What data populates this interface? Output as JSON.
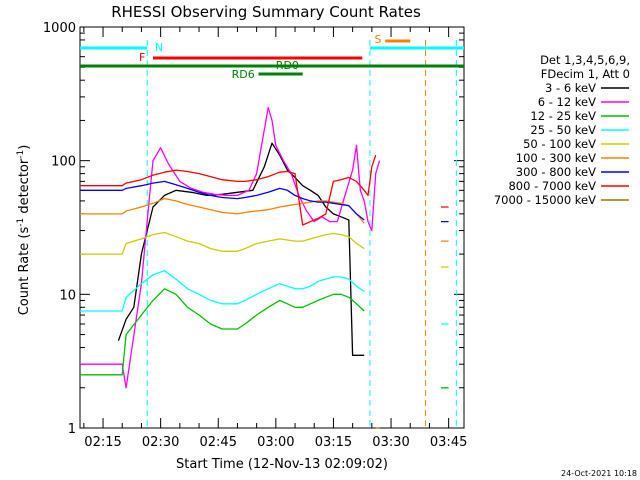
{
  "chart_data": {
    "type": "line",
    "title": "RHESSI Observing Summary Count Rates",
    "xlabel": "Start Time (12-Nov-13 02:09:02)",
    "ylabel_main": "Count Rate (s",
    "ylabel_sup1": "-1",
    "ylabel_mid": " detector",
    "ylabel_sup2": "-1",
    "ylabel_end": ")",
    "yscale": "log",
    "ylim": [
      1,
      1000
    ],
    "xlim_min": [
      129,
      229
    ],
    "x_tick_labels": [
      {
        "t": 135,
        "label": "02:15"
      },
      {
        "t": 150,
        "label": "02:30"
      },
      {
        "t": 165,
        "label": "02:45"
      },
      {
        "t": 180,
        "label": "03:00"
      },
      {
        "t": 195,
        "label": "03:15"
      },
      {
        "t": 210,
        "label": "03:30"
      },
      {
        "t": 225,
        "label": "03:45"
      }
    ],
    "y_tick_labels": [
      {
        "v": 1,
        "label": "1"
      },
      {
        "v": 10,
        "label": "10"
      },
      {
        "v": 100,
        "label": "100"
      },
      {
        "v": 1000,
        "label": "1000"
      }
    ],
    "legend_header": [
      "Det 1,3,4,5,6,9,",
      "FDecim 1, Att 0"
    ],
    "series": [
      {
        "name": "3 - 6 keV",
        "color": "#000000",
        "points": [
          [
            129,
            null
          ],
          [
            138,
            null
          ],
          [
            139,
            4.5
          ],
          [
            141,
            6.5
          ],
          [
            143,
            8
          ],
          [
            145,
            20
          ],
          [
            148,
            45
          ],
          [
            151,
            55
          ],
          [
            154,
            60
          ],
          [
            158,
            58
          ],
          [
            162,
            55
          ],
          [
            166,
            56
          ],
          [
            170,
            58
          ],
          [
            174,
            60
          ],
          [
            177,
            90
          ],
          [
            179,
            135
          ],
          [
            181,
            110
          ],
          [
            183,
            85
          ],
          [
            185,
            75
          ],
          [
            187,
            65
          ],
          [
            189,
            60
          ],
          [
            191,
            55
          ],
          [
            193,
            45
          ],
          [
            195,
            40
          ],
          [
            197,
            38
          ],
          [
            199,
            36
          ],
          [
            200,
            3.5
          ],
          [
            203,
            3.5
          ],
          [
            204,
            null
          ]
        ]
      },
      {
        "name": "6 - 12 keV",
        "color": "#ff00ff",
        "points": [
          [
            129,
            3
          ],
          [
            140,
            3
          ],
          [
            141,
            2
          ],
          [
            145,
            12
          ],
          [
            147,
            50
          ],
          [
            148,
            100
          ],
          [
            150,
            125
          ],
          [
            152,
            95
          ],
          [
            155,
            70
          ],
          [
            158,
            62
          ],
          [
            161,
            58
          ],
          [
            164,
            56
          ],
          [
            167,
            55
          ],
          [
            170,
            55
          ],
          [
            173,
            60
          ],
          [
            175,
            80
          ],
          [
            177,
            170
          ],
          [
            178,
            250
          ],
          [
            179,
            200
          ],
          [
            180,
            130
          ],
          [
            182,
            100
          ],
          [
            184,
            80
          ],
          [
            186,
            55
          ],
          [
            188,
            42
          ],
          [
            190,
            35
          ],
          [
            192,
            38
          ],
          [
            194,
            35
          ],
          [
            196,
            35
          ],
          [
            198,
            55
          ],
          [
            200,
            85
          ],
          [
            201,
            130
          ],
          [
            202,
            60
          ],
          [
            203,
            50
          ],
          [
            204,
            35
          ],
          [
            205,
            30
          ],
          [
            206,
            80
          ],
          [
            207,
            100
          ],
          [
            208,
            null
          ]
        ]
      },
      {
        "name": "12 - 25 keV",
        "color": "#00c000",
        "points": [
          [
            129,
            2.5
          ],
          [
            140,
            2.5
          ],
          [
            141,
            5
          ],
          [
            145,
            7
          ],
          [
            148,
            9
          ],
          [
            151,
            11
          ],
          [
            154,
            10
          ],
          [
            157,
            8
          ],
          [
            160,
            7
          ],
          [
            163,
            6
          ],
          [
            166,
            5.5
          ],
          [
            170,
            5.5
          ],
          [
            172,
            6
          ],
          [
            175,
            7
          ],
          [
            178,
            8
          ],
          [
            181,
            9
          ],
          [
            183,
            8.5
          ],
          [
            185,
            8
          ],
          [
            187,
            8
          ],
          [
            189,
            8.5
          ],
          [
            191,
            9
          ],
          [
            193,
            9.5
          ],
          [
            195,
            10
          ],
          [
            197,
            10
          ],
          [
            199,
            9.5
          ],
          [
            201,
            8.5
          ],
          [
            203,
            7.5
          ],
          [
            204,
            null
          ],
          [
            222,
            null
          ],
          [
            223,
            2
          ],
          [
            225,
            2
          ],
          [
            226,
            null
          ]
        ]
      },
      {
        "name": "25 - 50 keV",
        "color": "#00ffff",
        "points": [
          [
            129,
            7.5
          ],
          [
            140,
            7.5
          ],
          [
            141,
            9.5
          ],
          [
            145,
            12
          ],
          [
            148,
            14
          ],
          [
            151,
            15
          ],
          [
            154,
            13
          ],
          [
            157,
            11
          ],
          [
            160,
            10
          ],
          [
            163,
            9
          ],
          [
            166,
            8.5
          ],
          [
            170,
            8.5
          ],
          [
            172,
            9
          ],
          [
            175,
            10
          ],
          [
            178,
            11
          ],
          [
            181,
            12
          ],
          [
            183,
            11.5
          ],
          [
            185,
            11
          ],
          [
            187,
            11
          ],
          [
            189,
            11.5
          ],
          [
            191,
            12.5
          ],
          [
            193,
            13
          ],
          [
            195,
            13.5
          ],
          [
            197,
            13.5
          ],
          [
            199,
            13
          ],
          [
            201,
            11.5
          ],
          [
            203,
            10.5
          ],
          [
            204,
            null
          ],
          [
            222,
            null
          ],
          [
            223,
            6
          ],
          [
            225,
            6
          ],
          [
            226,
            null
          ]
        ]
      },
      {
        "name": "50 - 100 keV",
        "color": "#cccc00",
        "points": [
          [
            129,
            20
          ],
          [
            140,
            20
          ],
          [
            141,
            24
          ],
          [
            145,
            26
          ],
          [
            148,
            28
          ],
          [
            151,
            29
          ],
          [
            154,
            27
          ],
          [
            157,
            25
          ],
          [
            160,
            24
          ],
          [
            163,
            22
          ],
          [
            166,
            21
          ],
          [
            170,
            21
          ],
          [
            172,
            22
          ],
          [
            175,
            24
          ],
          [
            178,
            25
          ],
          [
            181,
            26
          ],
          [
            183,
            25.5
          ],
          [
            185,
            25
          ],
          [
            187,
            25
          ],
          [
            189,
            26
          ],
          [
            191,
            27
          ],
          [
            193,
            28
          ],
          [
            195,
            28.5
          ],
          [
            197,
            28
          ],
          [
            199,
            27
          ],
          [
            201,
            24
          ],
          [
            203,
            22
          ],
          [
            204,
            null
          ],
          [
            222,
            null
          ],
          [
            223,
            16
          ],
          [
            225,
            16
          ],
          [
            226,
            null
          ]
        ]
      },
      {
        "name": "100 - 300 keV",
        "color": "#ff8000",
        "points": [
          [
            129,
            40
          ],
          [
            140,
            40
          ],
          [
            141,
            42
          ],
          [
            145,
            45
          ],
          [
            148,
            48
          ],
          [
            151,
            52
          ],
          [
            154,
            50
          ],
          [
            157,
            47
          ],
          [
            160,
            45
          ],
          [
            163,
            43
          ],
          [
            166,
            41
          ],
          [
            170,
            40
          ],
          [
            172,
            41
          ],
          [
            175,
            42
          ],
          [
            178,
            43
          ],
          [
            181,
            45
          ],
          [
            183,
            46
          ],
          [
            185,
            47
          ],
          [
            187,
            48
          ],
          [
            189,
            49
          ],
          [
            191,
            50
          ],
          [
            193,
            50
          ],
          [
            195,
            49
          ],
          [
            197,
            48
          ],
          [
            199,
            46
          ],
          [
            201,
            40
          ],
          [
            203,
            34
          ],
          [
            204,
            null
          ],
          [
            222,
            null
          ],
          [
            223,
            25
          ],
          [
            225,
            25
          ],
          [
            226,
            null
          ]
        ]
      },
      {
        "name": "300 - 800 keV",
        "color": "#0000ff",
        "points": [
          [
            129,
            60
          ],
          [
            140,
            60
          ],
          [
            141,
            62
          ],
          [
            145,
            65
          ],
          [
            148,
            68
          ],
          [
            151,
            70
          ],
          [
            154,
            66
          ],
          [
            157,
            62
          ],
          [
            160,
            58
          ],
          [
            163,
            55
          ],
          [
            166,
            53
          ],
          [
            170,
            52
          ],
          [
            172,
            53
          ],
          [
            175,
            55
          ],
          [
            178,
            58
          ],
          [
            181,
            62
          ],
          [
            183,
            60
          ],
          [
            185,
            55
          ],
          [
            187,
            52
          ],
          [
            189,
            50
          ],
          [
            191,
            49
          ],
          [
            193,
            49
          ],
          [
            195,
            48
          ],
          [
            197,
            47
          ],
          [
            199,
            46
          ],
          [
            201,
            40
          ],
          [
            203,
            36
          ],
          [
            204,
            null
          ],
          [
            222,
            null
          ],
          [
            223,
            35
          ],
          [
            225,
            35
          ],
          [
            226,
            null
          ]
        ]
      },
      {
        "name": "800 - 7000 keV",
        "color": "#ff0000",
        "points": [
          [
            129,
            65
          ],
          [
            140,
            65
          ],
          [
            141,
            68
          ],
          [
            145,
            72
          ],
          [
            148,
            78
          ],
          [
            151,
            82
          ],
          [
            154,
            85
          ],
          [
            157,
            83
          ],
          [
            160,
            80
          ],
          [
            163,
            76
          ],
          [
            166,
            72
          ],
          [
            170,
            70
          ],
          [
            172,
            70
          ],
          [
            175,
            72
          ],
          [
            178,
            76
          ],
          [
            181,
            82
          ],
          [
            183,
            83
          ],
          [
            185,
            80
          ],
          [
            187,
            33
          ],
          [
            189,
            35
          ],
          [
            191,
            37
          ],
          [
            193,
            40
          ],
          [
            195,
            70
          ],
          [
            197,
            72
          ],
          [
            199,
            75
          ],
          [
            201,
            70
          ],
          [
            203,
            60
          ],
          [
            204,
            55
          ],
          [
            205,
            90
          ],
          [
            206,
            110
          ],
          [
            207,
            null
          ],
          [
            222,
            null
          ],
          [
            223,
            45
          ],
          [
            225,
            45
          ],
          [
            226,
            null
          ]
        ]
      },
      {
        "name": "7000 - 15000 keV",
        "color": "#a07000",
        "points": [
          [
            129,
            null
          ],
          [
            205,
            null
          ],
          [
            206,
            1
          ],
          [
            207,
            1
          ],
          [
            208,
            null
          ]
        ]
      }
    ],
    "annotations": [
      {
        "label": "N",
        "color": "#00ffff"
      },
      {
        "label": "F",
        "color": "#ff0000"
      },
      {
        "label": "S",
        "color": "#ff8000"
      },
      {
        "label": "RD0",
        "color": "#008000"
      },
      {
        "label": "RD6",
        "color": "#008000"
      }
    ],
    "footer_right": "24-Oct-2021 10:18",
    "legend_placement": "right"
  }
}
